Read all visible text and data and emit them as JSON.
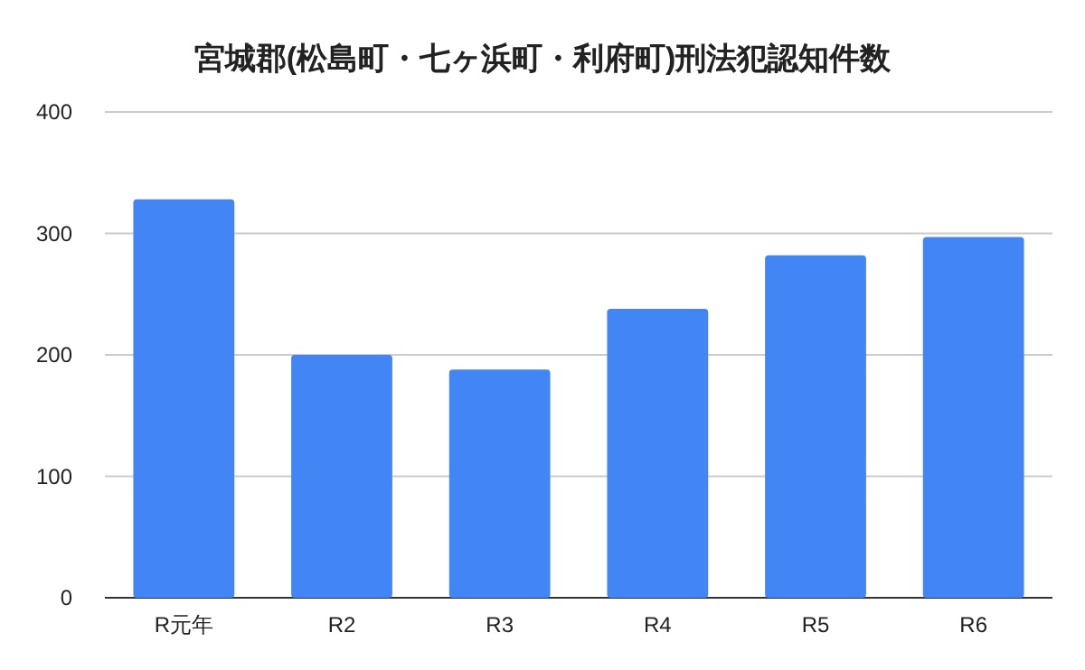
{
  "chart_data": {
    "type": "bar",
    "title": "宮城郡(松島町・七ヶ浜町・利府町)刑法犯認知件数",
    "categories": [
      "R元年",
      "R2",
      "R3",
      "R4",
      "R5",
      "R6"
    ],
    "values": [
      328,
      200,
      188,
      238,
      282,
      297
    ],
    "color": "#4285f4",
    "ylim": [
      0,
      400
    ],
    "yticks": [
      0,
      100,
      200,
      300,
      400
    ],
    "grid": "y"
  }
}
